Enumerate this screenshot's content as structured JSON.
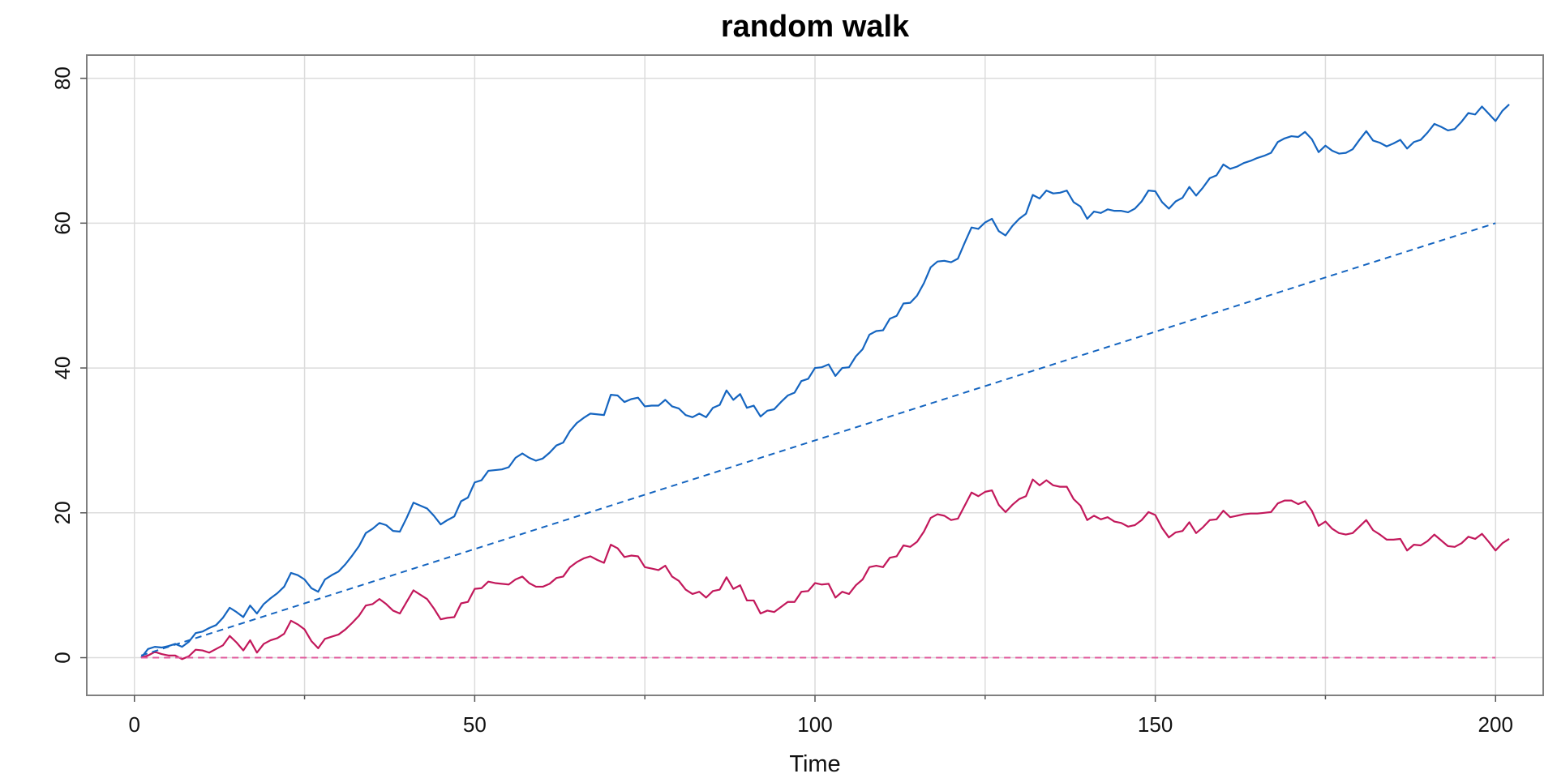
{
  "chart_data": {
    "type": "line",
    "title": "random walk",
    "xlabel": "Time",
    "ylabel": "",
    "xlim": [
      -7,
      207
    ],
    "ylim": [
      -5.2,
      83.2
    ],
    "x_ticks": [
      0,
      50,
      100,
      150,
      200
    ],
    "x_ticks_minor": [
      25,
      75,
      125,
      175
    ],
    "y_ticks": [
      0,
      20,
      40,
      60,
      80
    ],
    "grid": true,
    "colors": {
      "walk_with_drift": "#1565c0",
      "walk_without_drift": "#c2185b",
      "drift_line": "#1565c0",
      "zero_line": "#e05a9c",
      "grid": "#dcdcdc",
      "frame": "#808080"
    },
    "series": [
      {
        "style": "solid",
        "color": "#1565c0",
        "x_start": 1,
        "values": [
          0.0,
          1.2,
          1.5,
          1.4,
          1.6,
          1.9,
          1.5,
          2.2,
          3.4,
          3.6,
          4.1,
          4.5,
          5.5,
          6.9,
          6.3,
          5.6,
          7.2,
          6.1,
          7.4,
          8.2,
          8.9,
          9.8,
          11.7,
          11.4,
          10.8,
          9.6,
          9.1,
          10.8,
          11.4,
          11.9,
          12.9,
          14.1,
          15.4,
          17.2,
          17.8,
          18.6,
          18.3,
          17.5,
          17.4,
          19.3,
          21.4,
          21.0,
          20.6,
          19.6,
          18.4,
          19.0,
          19.5,
          21.6,
          22.1,
          24.2,
          24.5,
          25.8,
          25.9,
          26.0,
          26.3,
          27.6,
          28.2,
          27.6,
          27.2,
          27.5,
          28.3,
          29.3,
          29.7,
          31.3,
          32.4,
          33.1,
          33.7,
          33.6,
          33.5,
          36.3,
          36.2,
          35.3,
          35.7,
          35.9,
          34.7,
          34.8,
          34.8,
          35.6,
          34.7,
          34.4,
          33.5,
          33.2,
          33.7,
          33.2,
          34.5,
          34.9,
          36.9,
          35.6,
          36.4,
          34.5,
          34.8,
          33.3,
          34.1,
          34.3,
          35.3,
          36.2,
          36.6,
          38.2,
          38.5,
          40.0,
          40.1,
          40.5,
          38.9,
          40.0,
          40.1,
          41.6,
          42.6,
          44.6,
          45.1,
          45.2,
          46.8,
          47.2,
          48.9,
          49.0,
          50.0,
          51.7,
          53.9,
          54.7,
          54.8,
          54.6,
          55.1,
          57.3,
          59.4,
          59.2,
          60.1,
          60.6,
          58.9,
          58.3,
          59.6,
          60.6,
          61.3,
          63.9,
          63.4,
          64.5,
          64.1,
          64.2,
          64.5,
          62.9,
          62.3,
          60.6,
          61.6,
          61.4,
          61.9,
          61.7,
          61.7,
          61.5,
          62.0,
          63.0,
          64.5,
          64.4,
          62.9,
          62.0,
          63.0,
          63.5,
          65.0,
          63.8,
          64.9,
          66.2,
          66.6,
          68.1,
          67.5,
          67.8,
          68.3,
          68.6,
          69.0,
          69.3,
          69.7,
          71.2,
          71.7,
          72.0,
          71.9,
          72.6,
          71.6,
          69.8,
          70.7,
          70.0,
          69.6,
          69.7,
          70.2,
          71.5,
          72.7,
          71.4,
          71.1,
          70.6,
          71.0,
          71.5,
          70.3,
          71.2,
          71.5,
          72.5,
          73.7,
          73.3,
          72.8,
          73.0,
          74.0,
          75.2,
          75.0,
          76.1,
          75.1,
          74.1,
          75.5,
          76.4
        ]
      },
      {
        "style": "solid",
        "color": "#c2185b",
        "x_start": 1,
        "values": [
          0.0,
          0.3,
          0.8,
          0.5,
          0.3,
          0.3,
          -0.2,
          0.2,
          1.1,
          1.0,
          0.7,
          1.2,
          1.7,
          3.0,
          2.1,
          1.0,
          2.4,
          0.7,
          1.9,
          2.4,
          2.7,
          3.3,
          5.1,
          4.6,
          3.9,
          2.3,
          1.3,
          2.6,
          2.9,
          3.2,
          3.9,
          4.8,
          5.8,
          7.2,
          7.4,
          8.1,
          7.4,
          6.5,
          6.1,
          7.7,
          9.3,
          8.7,
          8.1,
          6.8,
          5.3,
          5.5,
          5.6,
          7.5,
          7.7,
          9.5,
          9.6,
          10.5,
          10.3,
          10.2,
          10.1,
          10.8,
          11.2,
          10.3,
          9.8,
          9.8,
          10.2,
          11.0,
          11.2,
          12.5,
          13.2,
          13.7,
          14.0,
          13.5,
          13.1,
          15.6,
          15.1,
          13.9,
          14.1,
          14.0,
          12.5,
          12.3,
          12.1,
          12.7,
          11.2,
          10.6,
          9.4,
          8.8,
          9.1,
          8.3,
          9.2,
          9.4,
          11.1,
          9.5,
          10.0,
          7.9,
          7.9,
          6.1,
          6.5,
          6.3,
          7.0,
          7.7,
          7.7,
          9.1,
          9.2,
          10.3,
          10.1,
          10.2,
          8.3,
          9.1,
          8.8,
          10.0,
          10.8,
          12.5,
          12.7,
          12.5,
          13.8,
          14.0,
          15.5,
          15.3,
          16.0,
          17.4,
          19.3,
          19.8,
          19.6,
          19.0,
          19.2,
          21.0,
          22.8,
          22.3,
          22.9,
          23.1,
          21.1,
          20.1,
          21.1,
          21.9,
          22.3,
          24.6,
          23.8,
          24.5,
          23.8,
          23.6,
          23.6,
          21.9,
          21.0,
          19.0,
          19.6,
          19.1,
          19.4,
          18.8,
          18.6,
          18.1,
          18.3,
          19.0,
          20.1,
          19.7,
          17.9,
          16.6,
          17.3,
          17.5,
          18.7,
          17.2,
          18.0,
          19.0,
          19.1,
          20.3,
          19.4,
          19.6,
          19.8,
          19.9,
          19.9,
          20.0,
          20.1,
          21.3,
          21.7,
          21.7,
          21.2,
          21.6,
          20.3,
          18.2,
          18.8,
          17.8,
          17.2,
          17.0,
          17.2,
          18.1,
          19.0,
          17.6,
          17.0,
          16.3,
          16.3,
          16.4,
          14.8,
          15.6,
          15.5,
          16.1,
          17.0,
          16.2,
          15.4,
          15.3,
          15.8,
          16.7,
          16.4,
          17.1,
          16.0,
          14.8,
          15.8,
          16.4
        ]
      },
      {
        "style": "dashed",
        "color": "#1565c0",
        "x": [
          1,
          200
        ],
        "values": [
          0.3,
          60.0
        ]
      },
      {
        "style": "dashed",
        "color": "#e05a9c",
        "x": [
          1,
          200
        ],
        "values": [
          0,
          0
        ]
      }
    ]
  }
}
